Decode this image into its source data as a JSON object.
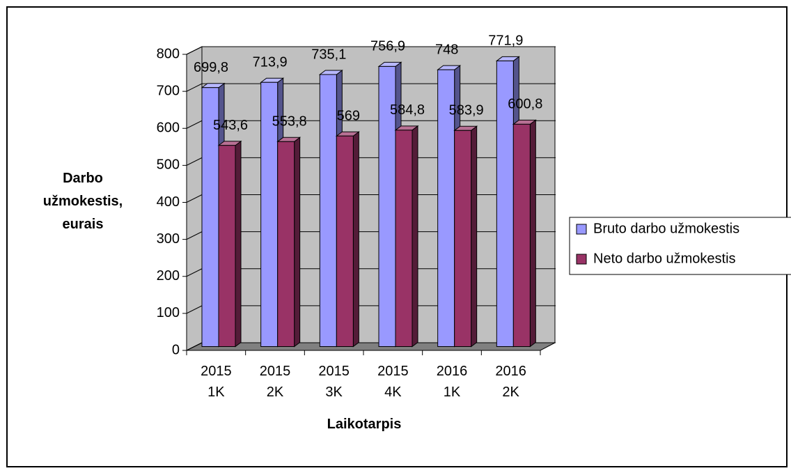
{
  "chart_data": {
    "type": "bar3d",
    "y_label": "Darbo užmokestis, eurais",
    "x_label": "Laikotarpis",
    "categories": [
      "2015 1K",
      "2015 2K",
      "2015 3K",
      "2015 4K",
      "2016 1K",
      "2016 2K"
    ],
    "series": [
      {
        "name": "Bruto darbo užmokestis",
        "color": "#9999ff",
        "values": [
          699.8,
          713.9,
          735.1,
          756.9,
          748,
          771.9
        ],
        "value_labels": [
          "699,8",
          "713,9",
          "735,1",
          "756,9",
          "748",
          "771,9"
        ]
      },
      {
        "name": "Neto darbo užmokestis",
        "color": "#993366",
        "values": [
          543.6,
          553.8,
          569,
          584.8,
          583.9,
          600.8
        ],
        "value_labels": [
          "543,6",
          "553,8",
          "569",
          "584,8",
          "583,9",
          "600,8"
        ]
      }
    ],
    "ylim": [
      0,
      800
    ],
    "yticks": [
      0,
      100,
      200,
      300,
      400,
      500,
      600,
      700,
      800
    ],
    "grid": true,
    "legend": "right"
  }
}
